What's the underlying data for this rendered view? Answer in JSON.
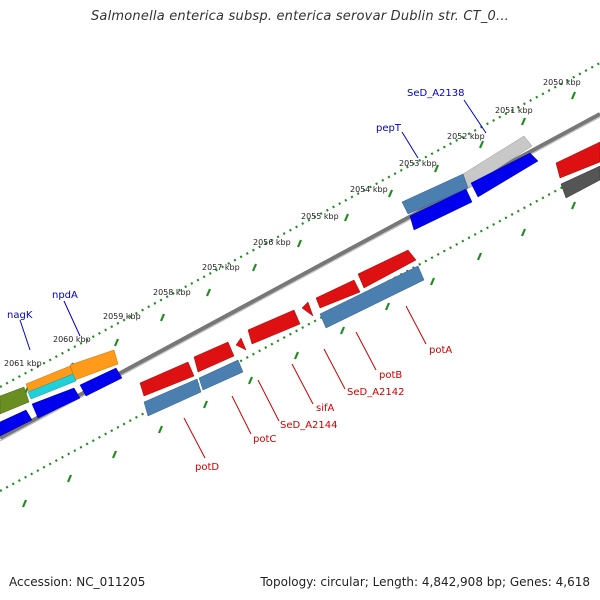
{
  "title": "Salmonella enterica subsp. enterica serovar Dublin str. CT_0...",
  "footer": {
    "accession": "Accession: NC_011205",
    "topology": "Topology: circular; Length: 4,842,908 bp; Genes: 4,618"
  },
  "colors": {
    "forward_gene": "#ff0000",
    "reverse_gene": "#0000ff",
    "track_blue": "#4682b4",
    "grey_gene": "#c0c0c0",
    "orange_gene": "#ff8c00",
    "cyan_gene": "#00ced1",
    "olive_gene": "#6b8e23",
    "dark_grey_gene": "#555555",
    "dotted_ring": "#228b22",
    "backbone": "#777777",
    "forward_label": "#cc0000",
    "reverse_label": "#0000cc"
  },
  "scale_ticks": [
    "2050 kbp",
    "2051 kbp",
    "2052 kbp",
    "2053 kbp",
    "2054 kbp",
    "2055 kbp",
    "2056 kbp",
    "2057 kbp",
    "2058 kbp",
    "2059 kbp",
    "2060 kbp",
    "2061 kbp"
  ],
  "labels_top": [
    "SeD_A2138",
    "pepT",
    "npdA",
    "nagK"
  ],
  "labels_bottom": [
    "potA",
    "potB",
    "SeD_A2142",
    "sifA",
    "SeD_A2144",
    "potC",
    "potD"
  ]
}
